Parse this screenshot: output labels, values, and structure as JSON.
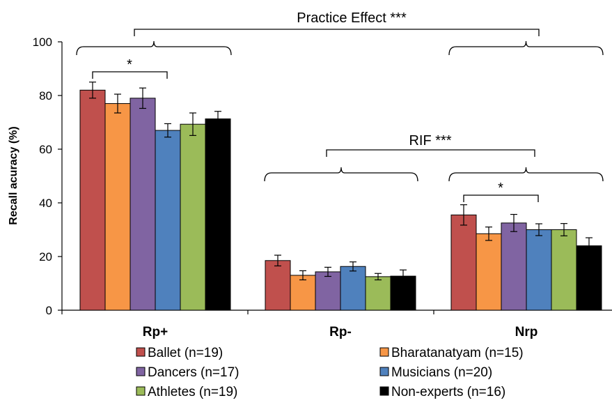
{
  "chart_data": {
    "type": "bar",
    "categories": [
      "Rp+",
      "Rp-",
      "Nrp"
    ],
    "ylabel": "Recall acuracy (%)",
    "xlabel": "",
    "ylim": [
      0,
      100
    ],
    "yticks": [
      0,
      20,
      40,
      60,
      80,
      100
    ],
    "grid": false,
    "legend_position": "bottom",
    "series": [
      {
        "name": "Ballet (n=19)",
        "color": "#C0504D",
        "values": [
          82,
          18.5,
          35.5
        ],
        "errors": [
          3,
          2,
          3.8
        ]
      },
      {
        "name": "Bharatanatyam (n=15)",
        "color": "#F79646",
        "values": [
          77,
          13,
          28.5
        ],
        "errors": [
          3.5,
          1.7,
          2.5
        ]
      },
      {
        "name": "Dancers (n=17)",
        "color": "#8064A2",
        "values": [
          79,
          14.3,
          32.5
        ],
        "errors": [
          3.8,
          1.7,
          3.2
        ]
      },
      {
        "name": "Musicians (n=20)",
        "color": "#4F81BD",
        "values": [
          67,
          16.3,
          30
        ],
        "errors": [
          2.5,
          1.7,
          2.2
        ]
      },
      {
        "name": "Athletes (n=19)",
        "color": "#9BBB59",
        "values": [
          69.3,
          12.5,
          30
        ],
        "errors": [
          4.2,
          1.2,
          2.3
        ]
      },
      {
        "name": "Non-experts (n=16)",
        "color": "#000000",
        "values": [
          71.3,
          12.7,
          24
        ],
        "errors": [
          2.8,
          2.3,
          3
        ]
      }
    ],
    "annotations": {
      "practice_effect": "Practice Effect ***",
      "rif": "RIF ***",
      "rp_plus_star": "*",
      "nrp_star": "*"
    }
  }
}
